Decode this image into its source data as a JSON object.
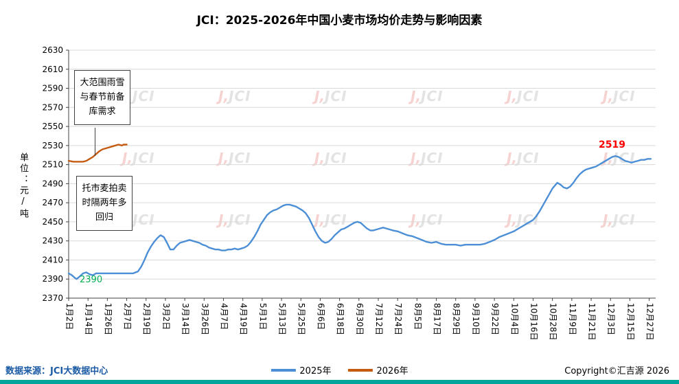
{
  "footer": {
    "source": "数据来源：JCI大数据中心",
    "copyright": "Copyright©汇吉源 2026"
  },
  "watermark": {
    "prefix": "J,",
    "label": "JCI"
  },
  "colors": {
    "grid": "#D9D9D9",
    "axis": "#404040",
    "source_text": "#1B5AA5",
    "bottom_bar": "#00A49A",
    "title_text": "#000000"
  },
  "chart_data": {
    "type": "line",
    "title": "JCI：2025-2026年中国小麦市场均价走势与影响因素",
    "ylabel": "单位：元/吨",
    "ylim": [
      2370,
      2630
    ],
    "ytick_step": 20,
    "grid": "horizontal",
    "legend_position": "bottom",
    "x_domain_days": [
      0,
      364
    ],
    "x_tick_interval_days": 12,
    "x_tick_labels": [
      "1月2日",
      "1月14日",
      "1月26日",
      "2月7日",
      "2月19日",
      "3月2日",
      "3月14日",
      "3月26日",
      "4月7日",
      "4月19日",
      "5月1日",
      "5月13日",
      "5月25日",
      "6月6日",
      "6月18日",
      "6月30日",
      "7月12日",
      "7月24日",
      "8月5日",
      "8月17日",
      "8月29日",
      "9月10日",
      "9月22日",
      "10月4日",
      "10月16日",
      "10月28日",
      "11月9日",
      "11月21日",
      "12月3日",
      "12月15日",
      "12月27日"
    ],
    "annotations": [
      {
        "text": "大范围雨雪与春节前备库需求"
      },
      {
        "text": "托市麦拍卖时隔两年多回归"
      }
    ],
    "point_labels": [
      {
        "text": "2390",
        "value": 2390,
        "color": "#00B050"
      },
      {
        "text": "2519",
        "value": 2519,
        "color": "#FF0000"
      }
    ],
    "series": [
      {
        "name": "2025年",
        "color": "#4C8FD6",
        "points": [
          [
            0,
            2396
          ],
          [
            2,
            2394
          ],
          [
            4,
            2391
          ],
          [
            5,
            2390
          ],
          [
            7,
            2393
          ],
          [
            9,
            2396
          ],
          [
            11,
            2397
          ],
          [
            13,
            2395
          ],
          [
            15,
            2394
          ],
          [
            17,
            2396
          ],
          [
            20,
            2396
          ],
          [
            24,
            2396
          ],
          [
            28,
            2396
          ],
          [
            32,
            2396
          ],
          [
            36,
            2396
          ],
          [
            40,
            2396
          ],
          [
            43,
            2398
          ],
          [
            45,
            2403
          ],
          [
            47,
            2410
          ],
          [
            49,
            2418
          ],
          [
            51,
            2424
          ],
          [
            53,
            2429
          ],
          [
            55,
            2433
          ],
          [
            57,
            2436
          ],
          [
            59,
            2434
          ],
          [
            61,
            2428
          ],
          [
            63,
            2421
          ],
          [
            65,
            2421
          ],
          [
            67,
            2425
          ],
          [
            69,
            2428
          ],
          [
            71,
            2429
          ],
          [
            73,
            2430
          ],
          [
            75,
            2431
          ],
          [
            77,
            2430
          ],
          [
            79,
            2429
          ],
          [
            81,
            2428
          ],
          [
            83,
            2426
          ],
          [
            85,
            2425
          ],
          [
            87,
            2423
          ],
          [
            89,
            2422
          ],
          [
            91,
            2421
          ],
          [
            93,
            2421
          ],
          [
            95,
            2420
          ],
          [
            97,
            2420
          ],
          [
            99,
            2421
          ],
          [
            101,
            2421
          ],
          [
            103,
            2422
          ],
          [
            105,
            2421
          ],
          [
            107,
            2422
          ],
          [
            109,
            2423
          ],
          [
            111,
            2425
          ],
          [
            113,
            2429
          ],
          [
            115,
            2434
          ],
          [
            117,
            2440
          ],
          [
            119,
            2447
          ],
          [
            121,
            2452
          ],
          [
            123,
            2457
          ],
          [
            125,
            2460
          ],
          [
            127,
            2462
          ],
          [
            129,
            2463
          ],
          [
            131,
            2465
          ],
          [
            133,
            2467
          ],
          [
            135,
            2468
          ],
          [
            137,
            2468
          ],
          [
            139,
            2467
          ],
          [
            141,
            2466
          ],
          [
            143,
            2464
          ],
          [
            145,
            2462
          ],
          [
            147,
            2459
          ],
          [
            149,
            2454
          ],
          [
            151,
            2447
          ],
          [
            153,
            2440
          ],
          [
            155,
            2434
          ],
          [
            157,
            2430
          ],
          [
            159,
            2428
          ],
          [
            161,
            2429
          ],
          [
            163,
            2432
          ],
          [
            165,
            2436
          ],
          [
            167,
            2439
          ],
          [
            169,
            2442
          ],
          [
            171,
            2443
          ],
          [
            173,
            2445
          ],
          [
            175,
            2447
          ],
          [
            177,
            2449
          ],
          [
            179,
            2450
          ],
          [
            181,
            2449
          ],
          [
            183,
            2446
          ],
          [
            185,
            2443
          ],
          [
            187,
            2441
          ],
          [
            189,
            2441
          ],
          [
            191,
            2442
          ],
          [
            193,
            2443
          ],
          [
            195,
            2444
          ],
          [
            197,
            2443
          ],
          [
            199,
            2442
          ],
          [
            201,
            2441
          ],
          [
            204,
            2440
          ],
          [
            207,
            2438
          ],
          [
            210,
            2436
          ],
          [
            213,
            2435
          ],
          [
            216,
            2433
          ],
          [
            219,
            2431
          ],
          [
            222,
            2429
          ],
          [
            225,
            2428
          ],
          [
            228,
            2429
          ],
          [
            231,
            2427
          ],
          [
            234,
            2426
          ],
          [
            237,
            2426
          ],
          [
            240,
            2426
          ],
          [
            243,
            2425
          ],
          [
            246,
            2426
          ],
          [
            249,
            2426
          ],
          [
            252,
            2426
          ],
          [
            255,
            2426
          ],
          [
            258,
            2427
          ],
          [
            261,
            2429
          ],
          [
            264,
            2431
          ],
          [
            267,
            2434
          ],
          [
            270,
            2436
          ],
          [
            273,
            2438
          ],
          [
            276,
            2440
          ],
          [
            279,
            2443
          ],
          [
            282,
            2446
          ],
          [
            285,
            2449
          ],
          [
            288,
            2452
          ],
          [
            290,
            2456
          ],
          [
            292,
            2461
          ],
          [
            294,
            2467
          ],
          [
            296,
            2473
          ],
          [
            298,
            2479
          ],
          [
            300,
            2485
          ],
          [
            302,
            2489
          ],
          [
            303,
            2491
          ],
          [
            305,
            2489
          ],
          [
            307,
            2486
          ],
          [
            309,
            2485
          ],
          [
            311,
            2487
          ],
          [
            313,
            2491
          ],
          [
            315,
            2496
          ],
          [
            317,
            2500
          ],
          [
            319,
            2503
          ],
          [
            321,
            2505
          ],
          [
            323,
            2506
          ],
          [
            325,
            2507
          ],
          [
            327,
            2508
          ],
          [
            329,
            2510
          ],
          [
            331,
            2512
          ],
          [
            333,
            2514
          ],
          [
            335,
            2516
          ],
          [
            337,
            2518
          ],
          [
            339,
            2519
          ],
          [
            341,
            2518
          ],
          [
            343,
            2516
          ],
          [
            345,
            2514
          ],
          [
            347,
            2513
          ],
          [
            349,
            2512
          ],
          [
            351,
            2513
          ],
          [
            353,
            2514
          ],
          [
            355,
            2515
          ],
          [
            357,
            2515
          ],
          [
            359,
            2516
          ],
          [
            361,
            2516
          ]
        ]
      },
      {
        "name": "2026年",
        "color": "#C55A11",
        "points": [
          [
            0,
            2514
          ],
          [
            3,
            2513
          ],
          [
            5,
            2513
          ],
          [
            7,
            2513
          ],
          [
            9,
            2513
          ],
          [
            11,
            2514
          ],
          [
            13,
            2516
          ],
          [
            15,
            2518
          ],
          [
            17,
            2521
          ],
          [
            19,
            2524
          ],
          [
            21,
            2526
          ],
          [
            23,
            2527
          ],
          [
            25,
            2528
          ],
          [
            27,
            2529
          ],
          [
            29,
            2530
          ],
          [
            31,
            2531
          ],
          [
            33,
            2530
          ],
          [
            34,
            2531
          ],
          [
            36,
            2531
          ]
        ]
      }
    ]
  }
}
